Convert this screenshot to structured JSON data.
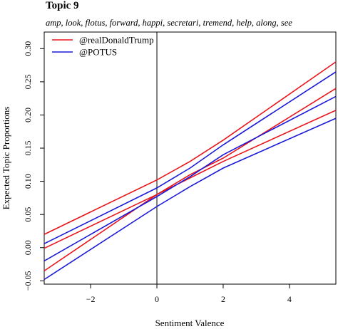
{
  "chart_data": {
    "type": "line",
    "title": "Topic 9",
    "subtitle": "amp, look, flotus, forward, happi, secretari, tremend, help, along, see",
    "xlabel": "Sentiment Valence",
    "ylabel": "Expected Topic Proportions",
    "xlim": [
      -3.4,
      5.4
    ],
    "ylim": [
      -0.055,
      0.325
    ],
    "xticks": [
      -2,
      0,
      2,
      4
    ],
    "xtick_labels": [
      "−2",
      "0",
      "2",
      "4"
    ],
    "yticks": [
      -0.05,
      0.0,
      0.05,
      0.1,
      0.15,
      0.2,
      0.25,
      0.3
    ],
    "ytick_labels": [
      "−0.05",
      "0.00",
      "0.05",
      "0.10",
      "0.15",
      "0.20",
      "0.25",
      "0.30"
    ],
    "vline_x": 0,
    "legend_position": "top-left",
    "grid": false,
    "series": [
      {
        "name": "@realDonaldTrump",
        "color": "#e8161b",
        "x": [
          -3.4,
          0,
          1,
          2,
          5.4
        ],
        "values": [
          -0.035,
          0.08,
          0.11,
          0.135,
          0.24
        ],
        "upper": [
          0.02,
          0.102,
          0.13,
          0.162,
          0.28
        ],
        "lower": [
          -0.001,
          0.08,
          0.105,
          0.13,
          0.207
        ]
      },
      {
        "name": "@POTUS",
        "color": "#1a1ad8",
        "x": [
          -3.4,
          0,
          1,
          2,
          5.4
        ],
        "values": [
          -0.02,
          0.077,
          0.107,
          0.14,
          0.228
        ],
        "upper": [
          0.006,
          0.09,
          0.12,
          0.155,
          0.265
        ],
        "lower": [
          -0.048,
          0.062,
          0.092,
          0.12,
          0.195
        ]
      }
    ]
  }
}
